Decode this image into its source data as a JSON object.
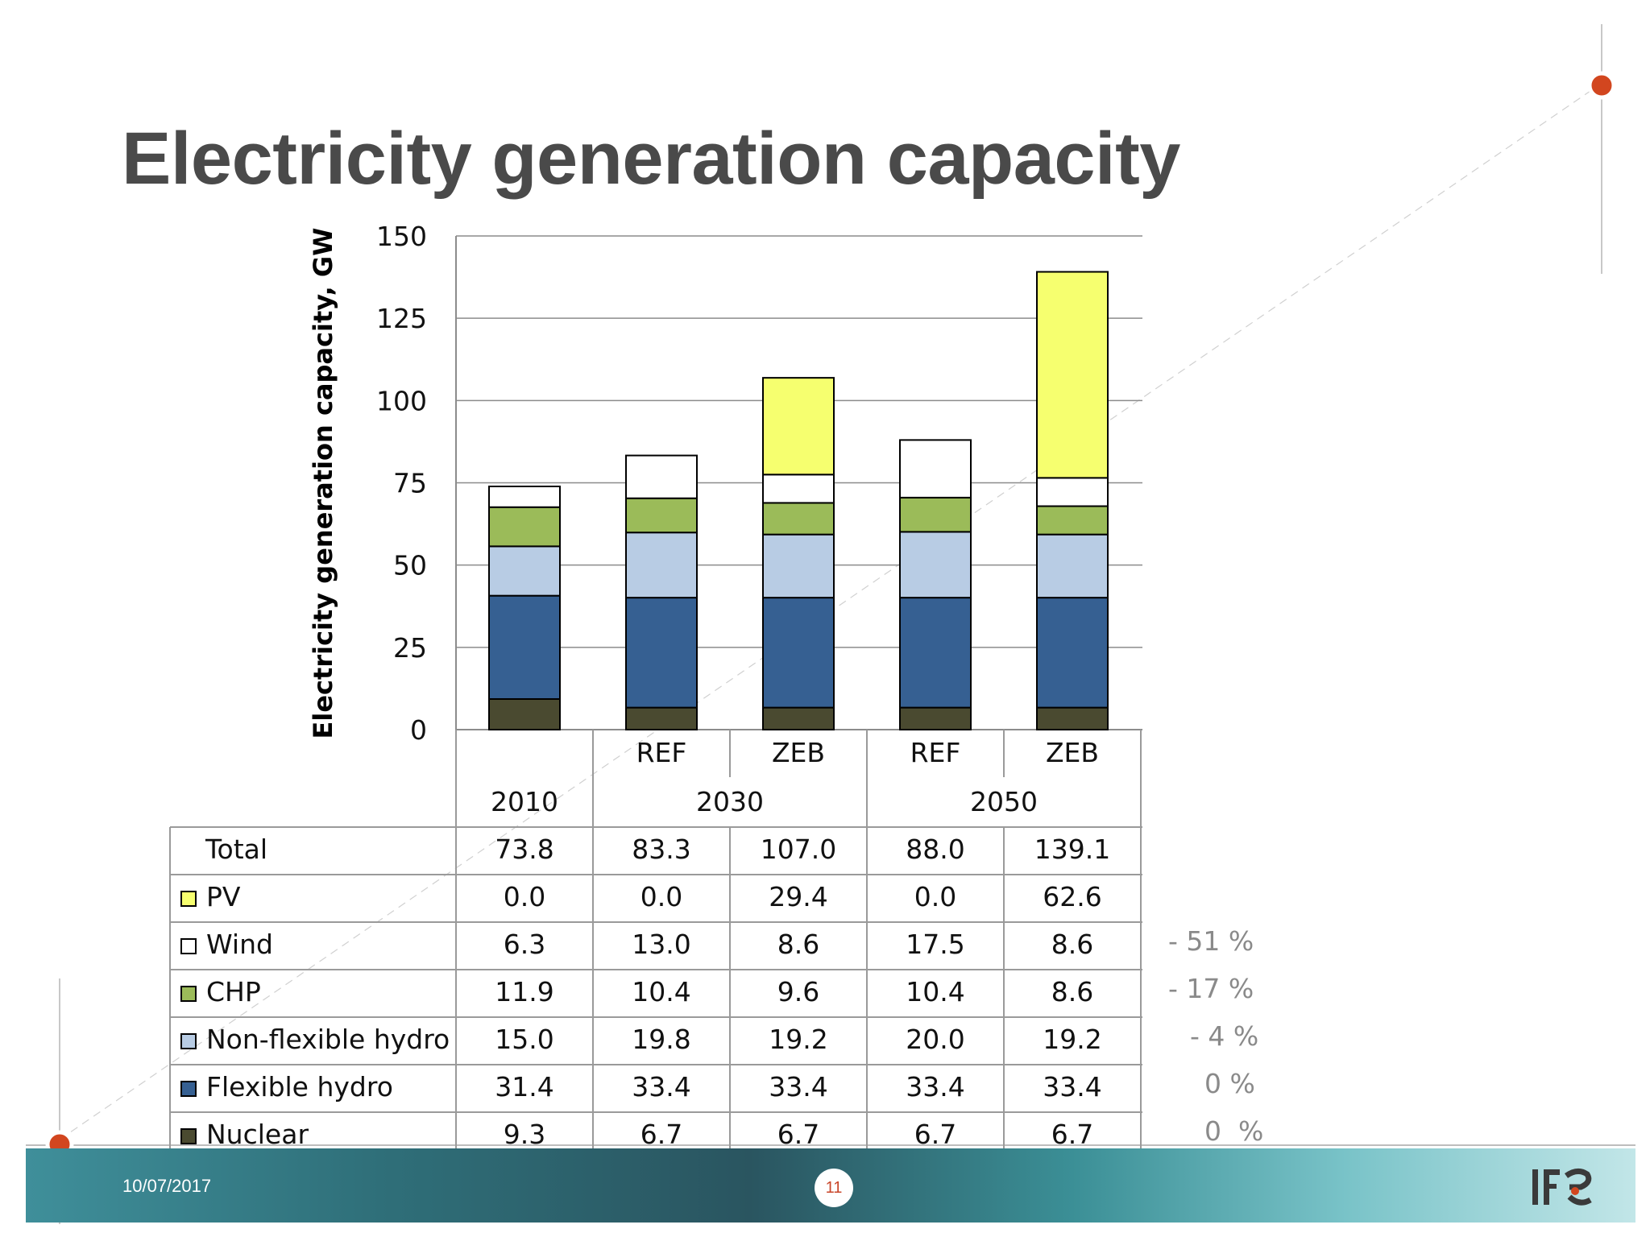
{
  "slide": {
    "title": "Electricity generation capacity",
    "date": "10/07/2017",
    "page_number": "11",
    "logo_text": "IFE"
  },
  "colors": {
    "nuclear": "#4a4a30",
    "flexible_hydro": "#366092",
    "non_flexible_hydro": "#b8cce4",
    "chp": "#9bbb59",
    "wind": "#ffffff",
    "pv": "#f6ff6f",
    "accent_dot": "#d2461f",
    "title": "#4a4a4a"
  },
  "chart_data": {
    "type": "bar",
    "stacked": true,
    "ylabel": "Electricity generation capacity, GW",
    "ylim": [
      0,
      150
    ],
    "yticks": [
      0,
      25,
      50,
      75,
      100,
      125,
      150
    ],
    "grid": true,
    "categories": [
      "2010",
      "2030 REF",
      "2030 ZEB",
      "2050 REF",
      "2050 ZEB"
    ],
    "scenario_labels": [
      "",
      "REF",
      "ZEB",
      "REF",
      "ZEB"
    ],
    "year_groups": [
      {
        "label": "2010",
        "span": 1
      },
      {
        "label": "2030",
        "span": 2
      },
      {
        "label": "2050",
        "span": 2
      }
    ],
    "series": [
      {
        "name": "Nuclear",
        "key": "nuclear",
        "values": [
          9.3,
          6.7,
          6.7,
          6.7,
          6.7
        ],
        "labels": [
          "9.3",
          "6.7",
          "6.7",
          "6.7",
          "6.7"
        ]
      },
      {
        "name": "Flexible hydro",
        "key": "flexible_hydro",
        "values": [
          31.4,
          33.4,
          33.4,
          33.4,
          33.4
        ],
        "labels": [
          "31.4",
          "33.4",
          "33.4",
          "33.4",
          "33.4"
        ]
      },
      {
        "name": "Non-flexible hydro",
        "key": "non_flexible_hydro",
        "values": [
          15.0,
          19.8,
          19.2,
          20.0,
          19.2
        ],
        "labels": [
          "15.0",
          "19.8",
          "19.2",
          "20.0",
          "19.2"
        ]
      },
      {
        "name": "CHP",
        "key": "chp",
        "values": [
          11.9,
          10.4,
          9.6,
          10.4,
          8.6
        ],
        "labels": [
          "11.9",
          "10.4",
          "9.6",
          "10.4",
          "8.6"
        ]
      },
      {
        "name": "Wind",
        "key": "wind",
        "values": [
          6.3,
          13.0,
          8.6,
          17.5,
          8.6
        ],
        "labels": [
          "6.3",
          "13.0",
          "8.6",
          "17.5",
          "8.6"
        ]
      },
      {
        "name": "PV",
        "key": "pv",
        "values": [
          0.0,
          0.0,
          29.4,
          0.0,
          62.6
        ],
        "labels": [
          "0.0",
          "0.0",
          "29.4",
          "0.0",
          "62.6"
        ]
      }
    ],
    "totals": {
      "name": "Total",
      "values": [
        73.8,
        83.3,
        107.0,
        88.0,
        139.1
      ],
      "labels": [
        "73.8",
        "83.3",
        "107.0",
        "88.0",
        "139.1"
      ]
    },
    "table_row_order": [
      "Total",
      "PV",
      "Wind",
      "CHP",
      "Non-flexible hydro",
      "Flexible hydro",
      "Nuclear"
    ],
    "change_annotations": [
      {
        "row": "Wind",
        "text": "- 51 %"
      },
      {
        "row": "CHP",
        "text": "- 17 %"
      },
      {
        "row": "Non-flexible hydro",
        "text": "- 4 %"
      },
      {
        "row": "Flexible hydro",
        "text": "0 %"
      },
      {
        "row": "Nuclear",
        "text": "0  %"
      }
    ]
  }
}
